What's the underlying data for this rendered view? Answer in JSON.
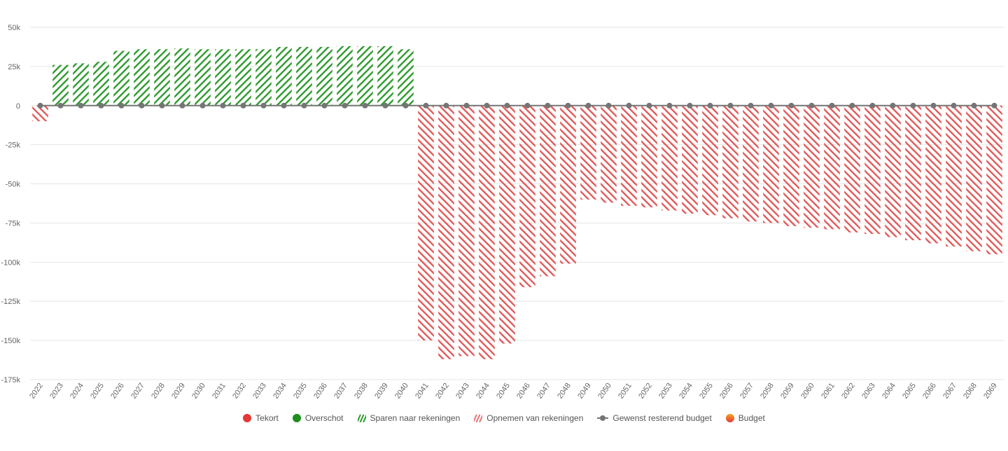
{
  "chart_data": {
    "type": "bar",
    "title": "",
    "xlabel": "",
    "ylabel": "",
    "ylim": [
      -175000,
      50000
    ],
    "yticks": [
      50000,
      25000,
      0,
      -25000,
      -50000,
      -75000,
      -100000,
      -125000,
      -150000,
      -175000
    ],
    "ytick_labels": [
      "50k",
      "25k",
      "0",
      "-25k",
      "-50k",
      "-75k",
      "-100k",
      "-125k",
      "-150k",
      "-175k"
    ],
    "grid": true,
    "legend_position": "bottom",
    "categories": [
      "2022",
      "2023",
      "2024",
      "2025",
      "2026",
      "2027",
      "2028",
      "2029",
      "2030",
      "2031",
      "2032",
      "2033",
      "2034",
      "2035",
      "2036",
      "2037",
      "2038",
      "2039",
      "2040",
      "2041",
      "2042",
      "2043",
      "2044",
      "2045",
      "2046",
      "2047",
      "2048",
      "2049",
      "2050",
      "2051",
      "2052",
      "2053",
      "2054",
      "2055",
      "2056",
      "2057",
      "2058",
      "2059",
      "2060",
      "2061",
      "2062",
      "2063",
      "2064",
      "2065",
      "2066",
      "2067",
      "2068",
      "2069"
    ],
    "values": [
      -10000,
      26000,
      27000,
      28000,
      35000,
      36000,
      36000,
      36500,
      36000,
      36000,
      36000,
      36000,
      37500,
      37500,
      37500,
      38000,
      38000,
      38000,
      36000,
      -150000,
      -162000,
      -160000,
      -162000,
      -152000,
      -116000,
      -109000,
      -101000,
      -60000,
      -62000,
      -64000,
      -65000,
      -67000,
      -69000,
      -70000,
      -72000,
      -74000,
      -75000,
      -77000,
      -78000,
      -79000,
      -81000,
      -82000,
      -84000,
      -86000,
      -88000,
      -90000,
      -93000,
      -95000
    ],
    "line_series": {
      "name": "Gewenst resterend budget",
      "values": [
        0,
        0,
        0,
        0,
        0,
        0,
        0,
        0,
        0,
        0,
        0,
        0,
        0,
        0,
        0,
        0,
        0,
        0,
        0,
        0,
        0,
        0,
        0,
        0,
        0,
        0,
        0,
        0,
        0,
        0,
        0,
        0,
        0,
        0,
        0,
        0,
        0,
        0,
        0,
        0,
        0,
        0,
        0,
        0,
        0,
        0,
        0,
        0
      ]
    },
    "legend": [
      {
        "label": "Tekort",
        "marker": "circle",
        "color": "#e53935"
      },
      {
        "label": "Overschot",
        "marker": "circle",
        "color": "#1e8e1e"
      },
      {
        "label": "Sparen naar rekeningen",
        "marker": "hatch",
        "color": "#2e9a2e"
      },
      {
        "label": "Opnemen van rekeningen",
        "marker": "hatch",
        "color": "#e57373"
      },
      {
        "label": "Gewenst resterend budget",
        "marker": "line-dot",
        "color": "#757575"
      },
      {
        "label": "Budget",
        "marker": "circle-gradient",
        "color": "#f57c00"
      }
    ],
    "colors": {
      "positive_hatch": "#2e9a2e",
      "negative_hatch": "#e05a5a",
      "line": "#757575",
      "grid": "#e6e6e6",
      "axis_text": "#666666"
    }
  }
}
